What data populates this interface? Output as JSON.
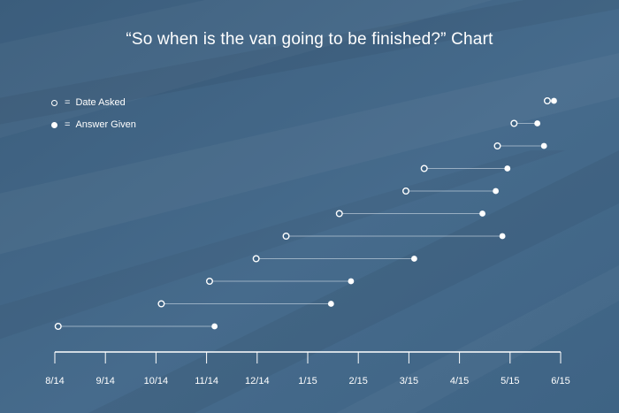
{
  "chart_data": {
    "type": "dumbbell",
    "title": "“So when is the van going to be finished?” Chart",
    "xlabel": "",
    "ylabel": "",
    "x_ticks": [
      "8/14",
      "9/14",
      "10/14",
      "11/14",
      "12/14",
      "1/15",
      "2/15",
      "3/15",
      "4/15",
      "5/15",
      "6/15"
    ],
    "xlim": [
      "2014-08-01",
      "2015-06-01"
    ],
    "grid": false,
    "legend": {
      "placement": "top-left",
      "equals": "=",
      "asked_label": "Date Asked",
      "answer_label": "Answer Given"
    },
    "series": [
      {
        "name": "Date Asked",
        "marker": "open"
      },
      {
        "name": "Answer Given",
        "marker": "filled"
      }
    ],
    "rows": [
      {
        "asked": "2014-08-03",
        "answer": "2014-11-05"
      },
      {
        "asked": "2014-10-04",
        "answer": "2015-01-14"
      },
      {
        "asked": "2014-11-02",
        "answer": "2015-01-26"
      },
      {
        "asked": "2014-11-30",
        "answer": "2015-03-05"
      },
      {
        "asked": "2014-12-18",
        "answer": "2015-04-27"
      },
      {
        "asked": "2015-01-19",
        "answer": "2015-04-15"
      },
      {
        "asked": "2015-02-28",
        "answer": "2015-04-23"
      },
      {
        "asked": "2015-03-11",
        "answer": "2015-04-30"
      },
      {
        "asked": "2015-04-24",
        "answer": "2015-05-22"
      },
      {
        "asked": "2015-05-04",
        "answer": "2015-05-18"
      },
      {
        "asked": "2015-05-24",
        "answer": "2015-05-28"
      }
    ]
  },
  "colors": {
    "background": "#3f6485",
    "foreground": "#ffffff",
    "connector": "#c9d6e2"
  }
}
